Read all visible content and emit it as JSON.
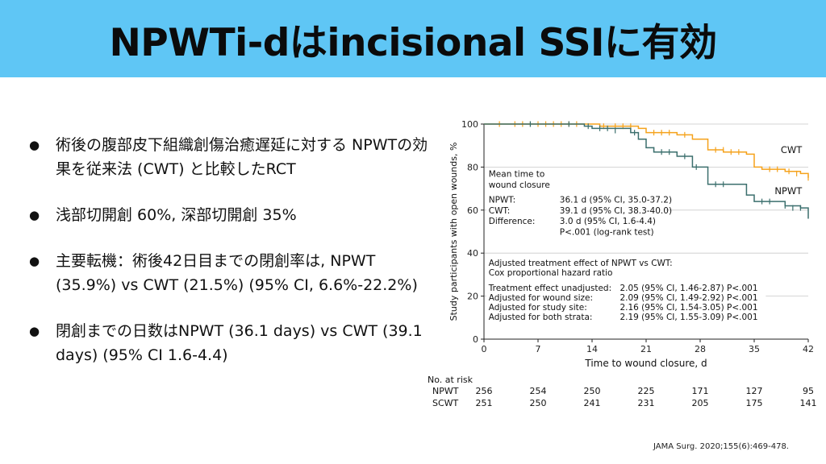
{
  "title": "NPWTi-dはincisional SSIに有効",
  "bullets": [
    "術後の腹部皮下組織創傷治癒遅延に対する NPWTの効果を従来法 (CWT) と比較したRCT",
    "浅部切開創 60%, 深部切開創 35%",
    "主要転機：術後42日目までの閉創率は, NPWT (35.9%) vs CWT (21.5%) (95% CI, 6.6%-22.2%)",
    "閉創までの日数はNPWT (36.1 days) vs CWT (39.1 days) (95% CI 1.6-4.4)"
  ],
  "source": "JAMA Surg. 2020;155(6):469-478.",
  "chart_data": {
    "type": "line",
    "xlabel": "Time to wound closure, d",
    "ylabel": "Study participants with open wounds, %",
    "xlim": [
      0,
      42
    ],
    "ylim": [
      0,
      100
    ],
    "xticks": [
      0,
      7,
      14,
      21,
      28,
      35,
      42
    ],
    "yticks": [
      0,
      20,
      40,
      60,
      80,
      100
    ],
    "grid": true,
    "series": [
      {
        "name": "CWT",
        "color": "#f5a21b",
        "steps": [
          [
            0,
            100
          ],
          [
            13,
            100
          ],
          [
            15,
            99
          ],
          [
            20,
            98
          ],
          [
            21,
            96
          ],
          [
            25,
            95
          ],
          [
            27,
            93
          ],
          [
            29,
            88
          ],
          [
            31,
            87
          ],
          [
            34,
            86
          ],
          [
            35,
            80
          ],
          [
            36,
            79
          ],
          [
            39,
            78
          ],
          [
            41,
            77
          ],
          [
            42,
            75
          ]
        ],
        "censored": [
          [
            2,
            100
          ],
          [
            4,
            100
          ],
          [
            5,
            100
          ],
          [
            6,
            100
          ],
          [
            7,
            100
          ],
          [
            8,
            100
          ],
          [
            9,
            100
          ],
          [
            10,
            100
          ],
          [
            11,
            100
          ],
          [
            12,
            100
          ],
          [
            15.5,
            99
          ],
          [
            17,
            99
          ],
          [
            18,
            99
          ],
          [
            19,
            99
          ],
          [
            22,
            96
          ],
          [
            23,
            96
          ],
          [
            24,
            96
          ],
          [
            26,
            95
          ],
          [
            30,
            88
          ],
          [
            31,
            88
          ],
          [
            32,
            87
          ],
          [
            33,
            87
          ],
          [
            37,
            79
          ],
          [
            38,
            79
          ],
          [
            39.5,
            78
          ],
          [
            40.5,
            77
          ],
          [
            42,
            75
          ]
        ]
      },
      {
        "name": "NPWT",
        "color": "#3b6f6d",
        "steps": [
          [
            0,
            100
          ],
          [
            12,
            100
          ],
          [
            13,
            99
          ],
          [
            14,
            98
          ],
          [
            19,
            96
          ],
          [
            20,
            93
          ],
          [
            21,
            89
          ],
          [
            22,
            87
          ],
          [
            25,
            85
          ],
          [
            27,
            80
          ],
          [
            29,
            72
          ],
          [
            34,
            67
          ],
          [
            35,
            64
          ],
          [
            39,
            62
          ],
          [
            41,
            61
          ],
          [
            42,
            56
          ]
        ],
        "censored": [
          [
            6,
            100
          ],
          [
            11,
            100
          ],
          [
            13.5,
            99
          ],
          [
            15,
            98
          ],
          [
            16,
            98
          ],
          [
            17,
            97
          ],
          [
            19.5,
            96
          ],
          [
            22,
            88
          ],
          [
            23,
            87
          ],
          [
            24,
            87
          ],
          [
            26,
            85
          ],
          [
            27.5,
            80
          ],
          [
            30,
            72
          ],
          [
            31,
            72
          ],
          [
            36,
            64
          ],
          [
            37,
            64
          ],
          [
            39,
            62
          ],
          [
            40,
            61
          ],
          [
            41,
            61
          ]
        ]
      }
    ],
    "annotations": {
      "series_labels": [
        "CWT",
        "NPWT"
      ],
      "box1": [
        {
          "label": "Mean time to",
          "value": ""
        },
        {
          "label": "wound closure",
          "value": ""
        },
        {
          "label": "NPWT:",
          "value": "36.1 d (95% CI, 35.0-37.2)"
        },
        {
          "label": "CWT:",
          "value": "39.1 d (95% CI, 38.3-40.0)"
        },
        {
          "label": "Difference:",
          "value": "3.0 d (95% CI, 1.6-4.4)"
        },
        {
          "label": "",
          "value": "P<.001 (log-rank test)"
        }
      ],
      "box2": [
        {
          "label": "Adjusted treatment effect of NPWT vs CWT:",
          "value": ""
        },
        {
          "label": "Cox proportional hazard ratio",
          "value": ""
        },
        {
          "label": "Treatment effect unadjusted:",
          "value": "2.05 (95% CI, 1.46-2.87) P<.001"
        },
        {
          "label": "Adjusted for wound size:",
          "value": "2.09 (95% CI, 1.49-2.92) P<.001"
        },
        {
          "label": "Adjusted for study site:",
          "value": "2.16 (95% CI, 1.54-3.05) P<.001"
        },
        {
          "label": "Adjusted for both strata:",
          "value": "2.19 (95% CI, 1.55-3.09) P<.001"
        }
      ]
    },
    "at_risk": {
      "title": "No. at risk",
      "rows": [
        {
          "name": "NPWT",
          "values": [
            256,
            254,
            250,
            225,
            171,
            127,
            95
          ]
        },
        {
          "name": "SCWT",
          "values": [
            251,
            250,
            241,
            231,
            205,
            175,
            141
          ]
        }
      ]
    }
  }
}
